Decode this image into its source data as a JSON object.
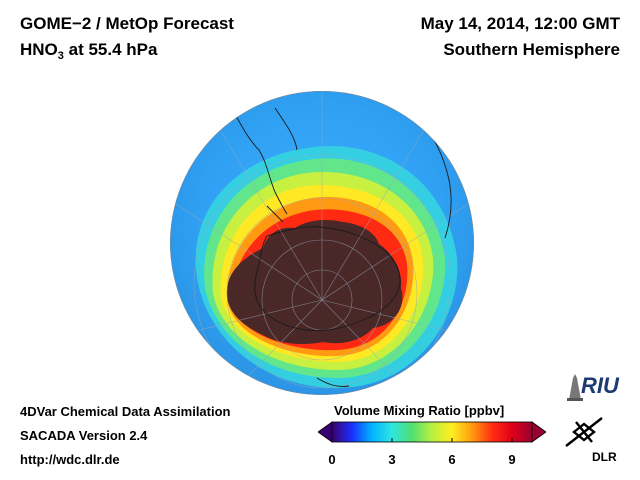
{
  "header": {
    "title": "GOME−2 / MetOp Forecast",
    "species_prefix": "HNO",
    "species_sub": "3",
    "species_suffix": " at 55.4 hPa",
    "datetime": "May 14, 2014, 12:00 GMT",
    "hemisphere": "Southern Hemisphere"
  },
  "footer": {
    "line1": "4DVar Chemical Data Assimilation",
    "line2": "SACADA Version 2.4",
    "line3": "http://wdc.dlr.de"
  },
  "colorbar": {
    "title": "Volume Mixing Ratio [ppbv]",
    "ticks": [
      "0",
      "3",
      "6",
      "9"
    ],
    "tick_values": [
      0,
      3,
      6,
      9
    ],
    "range": [
      0,
      10
    ],
    "colors": [
      "#3a0070",
      "#1a2fff",
      "#00b4ff",
      "#2ee6e0",
      "#50e070",
      "#b8f040",
      "#ffee20",
      "#ff9a10",
      "#ff3010",
      "#e00018",
      "#9a0030"
    ]
  },
  "logos": {
    "riu": "RIU",
    "dlr": "DLR"
  },
  "map": {
    "ocean_color": "#3aa8ff",
    "vortex_color": "#4a2828"
  }
}
